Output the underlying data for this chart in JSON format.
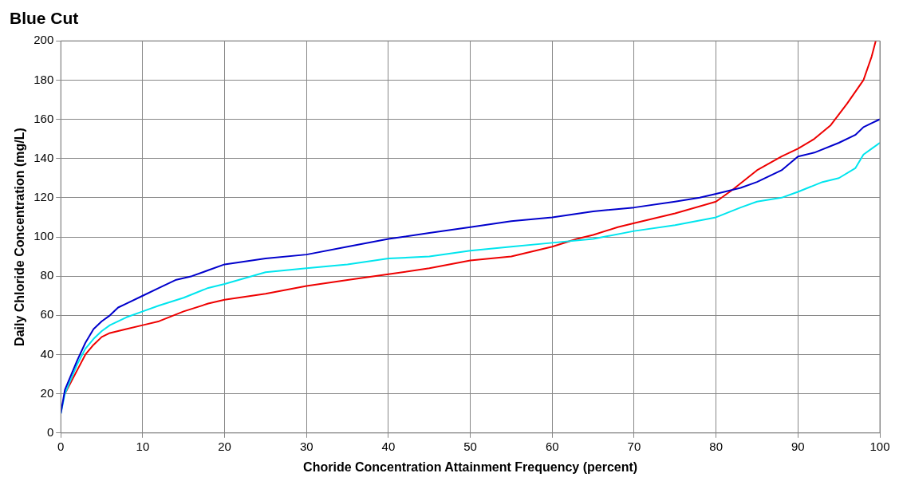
{
  "chart_data": {
    "type": "line",
    "title": "Blue Cut",
    "xlabel": "Choride Concentration Attainment Frequency (percent)",
    "ylabel": "Daily Chloride Concentration (mg/L)",
    "xlim": [
      0,
      100
    ],
    "xticks": [
      0,
      10,
      20,
      30,
      40,
      50,
      60,
      70,
      80,
      90,
      100
    ],
    "ylim": [
      0,
      200
    ],
    "yticks": [
      0,
      20,
      40,
      60,
      80,
      100,
      120,
      140,
      160,
      180,
      200
    ],
    "grid": true,
    "legend": false,
    "marker": "none",
    "line_style": "solid",
    "series": [
      {
        "color": "#0000cc",
        "x": [
          0,
          0.5,
          1,
          2,
          3,
          4,
          5,
          6,
          7,
          8,
          10,
          12,
          14,
          16,
          18,
          20,
          25,
          30,
          35,
          40,
          45,
          50,
          55,
          60,
          65,
          70,
          75,
          78,
          80,
          83,
          85,
          88,
          90,
          92,
          95,
          97,
          98,
          99,
          100
        ],
        "values": [
          10,
          22,
          27,
          37,
          46,
          53,
          57,
          60,
          64,
          66,
          70,
          74,
          78,
          80,
          83,
          86,
          89,
          91,
          95,
          99,
          102,
          105,
          108,
          110,
          113,
          115,
          118,
          120,
          122,
          125,
          128,
          134,
          141,
          143,
          148,
          152,
          156,
          158,
          160
        ]
      },
      {
        "color": "#00e5ee",
        "x": [
          0,
          0.5,
          1,
          2,
          3,
          4,
          5,
          6,
          8,
          10,
          12,
          15,
          18,
          20,
          25,
          30,
          35,
          40,
          45,
          50,
          55,
          60,
          65,
          70,
          75,
          80,
          83,
          85,
          88,
          90,
          93,
          95,
          97,
          98,
          99,
          100
        ],
        "values": [
          10,
          20,
          25,
          35,
          43,
          48,
          52,
          55,
          59,
          62,
          65,
          69,
          74,
          76,
          82,
          84,
          86,
          89,
          90,
          93,
          95,
          97,
          99,
          103,
          106,
          110,
          115,
          118,
          120,
          123,
          128,
          130,
          135,
          142,
          145,
          148
        ]
      },
      {
        "color": "#ee0000",
        "x": [
          0.5,
          1,
          2,
          3,
          4,
          5,
          6,
          8,
          10,
          12,
          15,
          18,
          20,
          25,
          30,
          35,
          40,
          45,
          50,
          55,
          60,
          63,
          65,
          68,
          70,
          75,
          80,
          82,
          85,
          88,
          90,
          92,
          94,
          96,
          98,
          99,
          99.5
        ],
        "values": [
          20,
          24,
          32,
          40,
          45,
          49,
          51,
          53,
          55,
          57,
          62,
          66,
          68,
          71,
          75,
          78,
          81,
          84,
          88,
          90,
          95,
          99,
          101,
          105,
          107,
          112,
          118,
          124,
          134,
          141,
          145,
          150,
          157,
          168,
          180,
          192,
          200
        ]
      }
    ]
  }
}
